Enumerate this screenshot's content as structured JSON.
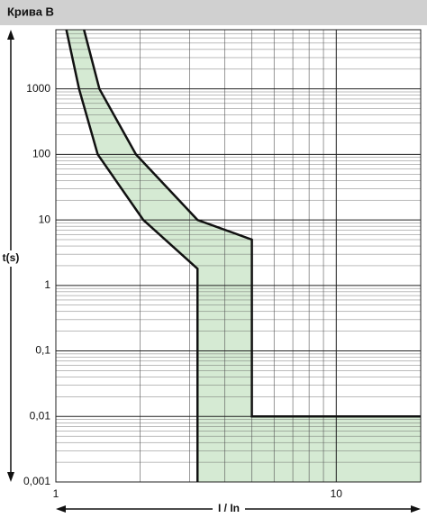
{
  "chart_data": {
    "type": "band",
    "title": "Крива B",
    "xlabel": "I / In",
    "ylabel": "t(s)",
    "xscale": "log",
    "yscale": "log",
    "grid": true,
    "xlim": [
      1,
      20
    ],
    "ylim": [
      0.001,
      8000
    ],
    "xticks": [
      1,
      10
    ],
    "yticks": [
      {
        "value": 0.001,
        "label": "0,001"
      },
      {
        "value": 0.01,
        "label": "0,01"
      },
      {
        "value": 0.1,
        "label": "0,1"
      },
      1,
      10,
      100,
      1000
    ],
    "fill": "#d5ead3",
    "series": [
      {
        "color": "#111111",
        "x": [
          1.09,
          1.21,
          1.41,
          2.05,
          3.2,
          3.2
        ],
        "values": [
          8000,
          1000,
          100,
          10,
          1.8,
          0.001
        ]
      },
      {
        "color": "#111111",
        "x": [
          1.26,
          1.43,
          1.93,
          3.2,
          5,
          5,
          20
        ],
        "values": [
          8000,
          1000,
          100,
          10,
          5,
          0.01,
          0.01
        ]
      }
    ]
  }
}
